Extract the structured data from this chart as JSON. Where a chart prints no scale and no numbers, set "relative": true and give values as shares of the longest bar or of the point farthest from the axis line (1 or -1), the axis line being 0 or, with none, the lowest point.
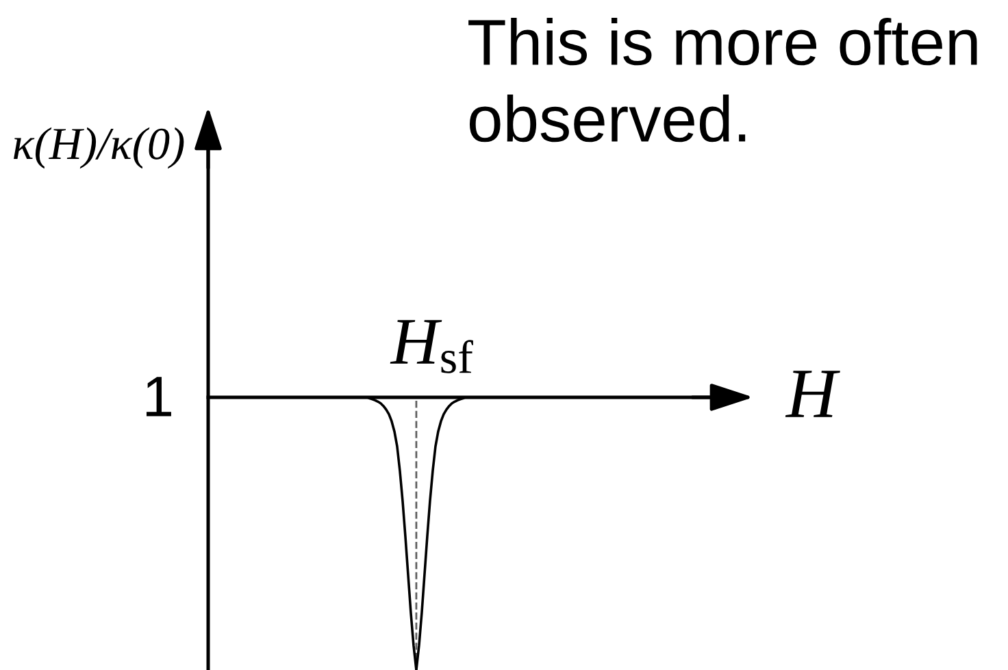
{
  "chart_data": {
    "type": "line",
    "relative": true,
    "xlabel": "H",
    "categories": [
      null,
      null,
      null,
      null,
      null,
      null,
      null,
      null,
      null,
      null,
      null,
      null,
      null,
      null,
      null,
      null,
      null,
      null,
      null,
      null,
      null,
      null,
      null,
      null,
      null,
      null,
      null,
      null,
      null,
      null,
      null,
      null,
      null,
      null,
      null,
      null,
      null,
      null,
      null,
      null,
      null,
      null,
      null,
      null,
      null,
      null,
      null,
      null,
      null,
      null,
      null,
      null,
      null,
      null,
      null,
      null,
      null,
      null,
      null,
      null,
      null,
      null,
      null,
      null,
      null
    ],
    "series": [
      {
        "color": "#000000",
        "values": [
          0,
          0,
          0,
          0,
          0,
          0,
          0,
          0,
          0,
          0,
          0,
          -0.004,
          -0.007,
          -0.011,
          -0.016,
          -0.022,
          -0.032,
          -0.045,
          -0.062,
          -0.088,
          -0.125,
          -0.18,
          -0.27,
          -0.38,
          -0.51,
          -0.65,
          -0.79,
          -0.91,
          -1,
          -0.91,
          -0.79,
          -0.65,
          -0.51,
          -0.38,
          -0.27,
          -0.18,
          -0.125,
          -0.088,
          -0.062,
          -0.045,
          -0.032,
          -0.022,
          -0.016,
          -0.011,
          -0.007,
          -0.004,
          0,
          0,
          0,
          0,
          0,
          0,
          0,
          0,
          0,
          0,
          0,
          0,
          0,
          0,
          0,
          0,
          0,
          0,
          0
        ]
      }
    ],
    "annotations": [
      "κ(H)/κ(0)",
      "1",
      "H$_{sf}$",
      "This is more often observed."
    ],
    "line_style": "solid"
  }
}
